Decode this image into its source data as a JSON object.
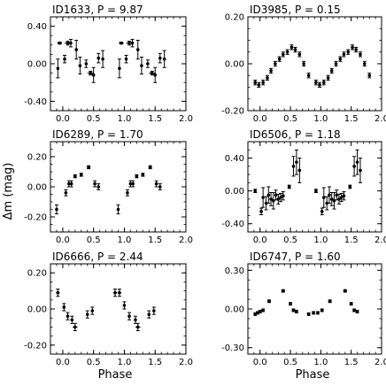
{
  "figure": {
    "ylabel": "Δm (mag)",
    "xlabel_left": "Phase",
    "xlabel_right": "Phase"
  },
  "chart_data": [
    {
      "type": "scatter",
      "title": "ID1633, P = 9.87",
      "xlim": [
        -0.2,
        2.0
      ],
      "ylim": [
        -0.5,
        0.5
      ],
      "xticks": [
        0.0,
        0.5,
        1.0,
        1.5,
        2.0
      ],
      "xticklabels": [
        "0.0",
        "0.5",
        "1.0",
        "1.5",
        "2.0"
      ],
      "yticks": [
        -0.4,
        0.0,
        0.4
      ],
      "yticklabels": [
        "-0.40",
        "0.00",
        "0.40"
      ],
      "points": [
        {
          "x": -0.08,
          "y": -0.05,
          "xerr": 0.01,
          "yerr": 0.1
        },
        {
          "x": -0.05,
          "y": 0.22,
          "xerr": 0.04,
          "yerr": 0.01
        },
        {
          "x": 0.03,
          "y": 0.05,
          "xerr": 0.02,
          "yerr": 0.04
        },
        {
          "x": 0.08,
          "y": 0.22,
          "xerr": 0.05,
          "yerr": 0.02
        },
        {
          "x": 0.13,
          "y": 0.22,
          "xerr": 0.02,
          "yerr": 0.04
        },
        {
          "x": 0.22,
          "y": 0.15,
          "xerr": 0.02,
          "yerr": 0.1
        },
        {
          "x": 0.28,
          "y": -0.02,
          "xerr": 0.02,
          "yerr": 0.09
        },
        {
          "x": 0.38,
          "y": 0.0,
          "xerr": 0.02,
          "yerr": 0.04
        },
        {
          "x": 0.45,
          "y": -0.1,
          "xerr": 0.05,
          "yerr": 0.02
        },
        {
          "x": 0.5,
          "y": -0.12,
          "xerr": 0.02,
          "yerr": 0.08
        },
        {
          "x": 0.58,
          "y": 0.06,
          "xerr": 0.02,
          "yerr": 0.05
        },
        {
          "x": 0.65,
          "y": 0.05,
          "xerr": 0.02,
          "yerr": 0.09
        },
        {
          "x": 0.92,
          "y": -0.05,
          "xerr": 0.01,
          "yerr": 0.1
        },
        {
          "x": 0.95,
          "y": 0.22,
          "xerr": 0.04,
          "yerr": 0.01
        },
        {
          "x": 1.03,
          "y": 0.05,
          "xerr": 0.02,
          "yerr": 0.04
        },
        {
          "x": 1.08,
          "y": 0.22,
          "xerr": 0.05,
          "yerr": 0.02
        },
        {
          "x": 1.13,
          "y": 0.22,
          "xerr": 0.02,
          "yerr": 0.04
        },
        {
          "x": 1.22,
          "y": 0.15,
          "xerr": 0.02,
          "yerr": 0.1
        },
        {
          "x": 1.28,
          "y": -0.02,
          "xerr": 0.02,
          "yerr": 0.09
        },
        {
          "x": 1.38,
          "y": 0.0,
          "xerr": 0.02,
          "yerr": 0.04
        },
        {
          "x": 1.45,
          "y": -0.1,
          "xerr": 0.05,
          "yerr": 0.02
        },
        {
          "x": 1.5,
          "y": -0.12,
          "xerr": 0.02,
          "yerr": 0.08
        },
        {
          "x": 1.58,
          "y": 0.06,
          "xerr": 0.02,
          "yerr": 0.05
        },
        {
          "x": 1.65,
          "y": 0.05,
          "xerr": 0.02,
          "yerr": 0.09
        }
      ]
    },
    {
      "type": "scatter",
      "title": "ID3985, P = 0.15",
      "xlim": [
        -0.2,
        2.0
      ],
      "ylim": [
        -0.2,
        0.2
      ],
      "xticks": [
        0.0,
        0.5,
        1.0,
        1.5,
        2.0
      ],
      "xticklabels": [
        "0.0",
        "0.5",
        "1.0",
        "1.5",
        "2.0"
      ],
      "yticks": [
        -0.2,
        0.0,
        0.2
      ],
      "yticklabels": [
        "-0.20",
        "0.00",
        "0.20"
      ],
      "points": [
        {
          "x": -0.08,
          "y": -0.08,
          "xerr": 0.02,
          "yerr": 0.01
        },
        {
          "x": -0.02,
          "y": -0.09,
          "xerr": 0.02,
          "yerr": 0.01
        },
        {
          "x": 0.05,
          "y": -0.08,
          "xerr": 0.02,
          "yerr": 0.01
        },
        {
          "x": 0.12,
          "y": -0.06,
          "xerr": 0.02,
          "yerr": 0.01
        },
        {
          "x": 0.18,
          "y": -0.03,
          "xerr": 0.02,
          "yerr": 0.01
        },
        {
          "x": 0.25,
          "y": 0.0,
          "xerr": 0.02,
          "yerr": 0.01
        },
        {
          "x": 0.32,
          "y": 0.02,
          "xerr": 0.02,
          "yerr": 0.01
        },
        {
          "x": 0.38,
          "y": 0.04,
          "xerr": 0.02,
          "yerr": 0.01
        },
        {
          "x": 0.45,
          "y": 0.05,
          "xerr": 0.02,
          "yerr": 0.01
        },
        {
          "x": 0.52,
          "y": 0.07,
          "xerr": 0.02,
          "yerr": 0.01
        },
        {
          "x": 0.58,
          "y": 0.06,
          "xerr": 0.02,
          "yerr": 0.01
        },
        {
          "x": 0.65,
          "y": 0.04,
          "xerr": 0.02,
          "yerr": 0.01
        },
        {
          "x": 0.72,
          "y": 0.0,
          "xerr": 0.02,
          "yerr": 0.01
        },
        {
          "x": 0.8,
          "y": -0.05,
          "xerr": 0.02,
          "yerr": 0.01
        },
        {
          "x": 0.92,
          "y": -0.08,
          "xerr": 0.02,
          "yerr": 0.01
        },
        {
          "x": 0.98,
          "y": -0.09,
          "xerr": 0.02,
          "yerr": 0.01
        },
        {
          "x": 1.05,
          "y": -0.08,
          "xerr": 0.02,
          "yerr": 0.01
        },
        {
          "x": 1.12,
          "y": -0.06,
          "xerr": 0.02,
          "yerr": 0.01
        },
        {
          "x": 1.18,
          "y": -0.03,
          "xerr": 0.02,
          "yerr": 0.01
        },
        {
          "x": 1.25,
          "y": 0.0,
          "xerr": 0.02,
          "yerr": 0.01
        },
        {
          "x": 1.32,
          "y": 0.02,
          "xerr": 0.02,
          "yerr": 0.01
        },
        {
          "x": 1.38,
          "y": 0.04,
          "xerr": 0.02,
          "yerr": 0.01
        },
        {
          "x": 1.45,
          "y": 0.05,
          "xerr": 0.02,
          "yerr": 0.01
        },
        {
          "x": 1.52,
          "y": 0.07,
          "xerr": 0.02,
          "yerr": 0.01
        },
        {
          "x": 1.58,
          "y": 0.06,
          "xerr": 0.02,
          "yerr": 0.01
        },
        {
          "x": 1.65,
          "y": 0.04,
          "xerr": 0.02,
          "yerr": 0.01
        },
        {
          "x": 1.72,
          "y": 0.0,
          "xerr": 0.02,
          "yerr": 0.01
        },
        {
          "x": 1.8,
          "y": -0.05,
          "xerr": 0.02,
          "yerr": 0.01
        }
      ]
    },
    {
      "type": "scatter",
      "title": "ID6289, P = 1.70",
      "xlim": [
        -0.2,
        2.0
      ],
      "ylim": [
        -0.3,
        0.3
      ],
      "xticks": [
        0.0,
        0.5,
        1.0,
        1.5,
        2.0
      ],
      "xticklabels": [
        "0.0",
        "0.5",
        "1.0",
        "1.5",
        "2.0"
      ],
      "yticks": [
        -0.2,
        0.0,
        0.2
      ],
      "yticklabels": [
        "-0.20",
        "0.00",
        "0.20"
      ],
      "points": [
        {
          "x": -0.1,
          "y": -0.15,
          "xerr": 0.02,
          "yerr": 0.03
        },
        {
          "x": 0.05,
          "y": -0.04,
          "xerr": 0.02,
          "yerr": 0.02
        },
        {
          "x": 0.1,
          "y": 0.02,
          "xerr": 0.02,
          "yerr": 0.02
        },
        {
          "x": 0.14,
          "y": 0.02,
          "xerr": 0.02,
          "yerr": 0.02
        },
        {
          "x": 0.2,
          "y": 0.07,
          "xerr": 0.02,
          "yerr": 0.01
        },
        {
          "x": 0.3,
          "y": 0.08,
          "xerr": 0.02,
          "yerr": 0.01
        },
        {
          "x": 0.42,
          "y": 0.13,
          "xerr": 0.03,
          "yerr": 0.01
        },
        {
          "x": 0.52,
          "y": 0.02,
          "xerr": 0.02,
          "yerr": 0.02
        },
        {
          "x": 0.58,
          "y": 0.0,
          "xerr": 0.02,
          "yerr": 0.02
        },
        {
          "x": 0.9,
          "y": -0.15,
          "xerr": 0.02,
          "yerr": 0.03
        },
        {
          "x": 1.05,
          "y": -0.04,
          "xerr": 0.02,
          "yerr": 0.02
        },
        {
          "x": 1.1,
          "y": 0.02,
          "xerr": 0.02,
          "yerr": 0.02
        },
        {
          "x": 1.14,
          "y": 0.02,
          "xerr": 0.02,
          "yerr": 0.02
        },
        {
          "x": 1.2,
          "y": 0.07,
          "xerr": 0.02,
          "yerr": 0.01
        },
        {
          "x": 1.3,
          "y": 0.08,
          "xerr": 0.02,
          "yerr": 0.01
        },
        {
          "x": 1.42,
          "y": 0.13,
          "xerr": 0.03,
          "yerr": 0.01
        },
        {
          "x": 1.52,
          "y": 0.02,
          "xerr": 0.02,
          "yerr": 0.02
        },
        {
          "x": 1.58,
          "y": 0.0,
          "xerr": 0.02,
          "yerr": 0.02
        }
      ]
    },
    {
      "type": "scatter",
      "title": "ID6506, P = 1.18",
      "xlim": [
        -0.2,
        2.0
      ],
      "ylim": [
        -0.5,
        0.6
      ],
      "xticks": [
        0.0,
        0.5,
        1.0,
        1.5,
        2.0
      ],
      "xticklabels": [
        "0.0",
        "0.5",
        "1.0",
        "1.5",
        "2.0"
      ],
      "yticks": [
        -0.4,
        0.0,
        0.4
      ],
      "yticklabels": [
        "-0.40",
        "0.00",
        "0.40"
      ],
      "points": [
        {
          "x": -0.08,
          "y": 0.0,
          "xerr": 0.02,
          "yerr": 0.02
        },
        {
          "x": 0.02,
          "y": -0.25,
          "xerr": 0.02,
          "yerr": 0.04
        },
        {
          "x": 0.05,
          "y": -0.08,
          "xerr": 0.02,
          "yerr": 0.12
        },
        {
          "x": 0.1,
          "y": -0.15,
          "xerr": 0.02,
          "yerr": 0.08
        },
        {
          "x": 0.14,
          "y": -0.05,
          "xerr": 0.02,
          "yerr": 0.1
        },
        {
          "x": 0.18,
          "y": -0.1,
          "xerr": 0.02,
          "yerr": 0.08
        },
        {
          "x": 0.22,
          "y": -0.12,
          "xerr": 0.02,
          "yerr": 0.1
        },
        {
          "x": 0.26,
          "y": -0.05,
          "xerr": 0.02,
          "yerr": 0.06
        },
        {
          "x": 0.3,
          "y": -0.1,
          "xerr": 0.02,
          "yerr": 0.06
        },
        {
          "x": 0.34,
          "y": -0.08,
          "xerr": 0.02,
          "yerr": 0.05
        },
        {
          "x": 0.38,
          "y": -0.06,
          "xerr": 0.02,
          "yerr": 0.05
        },
        {
          "x": 0.48,
          "y": 0.05,
          "xerr": 0.02,
          "yerr": 0.02
        },
        {
          "x": 0.55,
          "y": 0.3,
          "xerr": 0.02,
          "yerr": 0.12
        },
        {
          "x": 0.6,
          "y": 0.35,
          "xerr": 0.02,
          "yerr": 0.15
        },
        {
          "x": 0.65,
          "y": 0.25,
          "xerr": 0.02,
          "yerr": 0.15
        },
        {
          "x": 0.92,
          "y": 0.0,
          "xerr": 0.02,
          "yerr": 0.02
        },
        {
          "x": 1.02,
          "y": -0.25,
          "xerr": 0.02,
          "yerr": 0.04
        },
        {
          "x": 1.05,
          "y": -0.08,
          "xerr": 0.02,
          "yerr": 0.12
        },
        {
          "x": 1.1,
          "y": -0.15,
          "xerr": 0.02,
          "yerr": 0.08
        },
        {
          "x": 1.14,
          "y": -0.05,
          "xerr": 0.02,
          "yerr": 0.1
        },
        {
          "x": 1.18,
          "y": -0.1,
          "xerr": 0.02,
          "yerr": 0.08
        },
        {
          "x": 1.22,
          "y": -0.12,
          "xerr": 0.02,
          "yerr": 0.1
        },
        {
          "x": 1.26,
          "y": -0.05,
          "xerr": 0.02,
          "yerr": 0.06
        },
        {
          "x": 1.3,
          "y": -0.1,
          "xerr": 0.02,
          "yerr": 0.06
        },
        {
          "x": 1.34,
          "y": -0.08,
          "xerr": 0.02,
          "yerr": 0.05
        },
        {
          "x": 1.38,
          "y": -0.06,
          "xerr": 0.02,
          "yerr": 0.05
        },
        {
          "x": 1.48,
          "y": 0.05,
          "xerr": 0.02,
          "yerr": 0.02
        },
        {
          "x": 1.55,
          "y": 0.3,
          "xerr": 0.02,
          "yerr": 0.12
        },
        {
          "x": 1.6,
          "y": 0.35,
          "xerr": 0.02,
          "yerr": 0.15
        },
        {
          "x": 1.65,
          "y": 0.25,
          "xerr": 0.02,
          "yerr": 0.15
        }
      ]
    },
    {
      "type": "scatter",
      "title": "ID6666, P = 2.44",
      "xlim": [
        -0.2,
        2.0
      ],
      "ylim": [
        -0.25,
        0.25
      ],
      "xticks": [
        0.0,
        0.5,
        1.0,
        1.5,
        2.0
      ],
      "xticklabels": [
        "0.0",
        "0.5",
        "1.0",
        "1.5",
        "2.0"
      ],
      "yticks": [
        -0.2,
        0.0,
        0.2
      ],
      "yticklabels": [
        "-0.20",
        "0.00",
        "0.20"
      ],
      "points": [
        {
          "x": -0.08,
          "y": 0.09,
          "xerr": 0.03,
          "yerr": 0.02
        },
        {
          "x": 0.02,
          "y": 0.01,
          "xerr": 0.02,
          "yerr": 0.02
        },
        {
          "x": 0.08,
          "y": -0.04,
          "xerr": 0.02,
          "yerr": 0.02
        },
        {
          "x": 0.15,
          "y": -0.06,
          "xerr": 0.02,
          "yerr": 0.02
        },
        {
          "x": 0.2,
          "y": -0.1,
          "xerr": 0.04,
          "yerr": 0.02
        },
        {
          "x": 0.4,
          "y": -0.03,
          "xerr": 0.02,
          "yerr": 0.02
        },
        {
          "x": 0.48,
          "y": -0.01,
          "xerr": 0.02,
          "yerr": 0.02
        },
        {
          "x": 0.85,
          "y": 0.09,
          "xerr": 0.03,
          "yerr": 0.02
        },
        {
          "x": 0.92,
          "y": 0.09,
          "xerr": 0.03,
          "yerr": 0.02
        },
        {
          "x": 1.0,
          "y": 0.02,
          "xerr": 0.02,
          "yerr": 0.02
        },
        {
          "x": 1.08,
          "y": -0.04,
          "xerr": 0.02,
          "yerr": 0.02
        },
        {
          "x": 1.18,
          "y": -0.06,
          "xerr": 0.02,
          "yerr": 0.02
        },
        {
          "x": 1.22,
          "y": -0.1,
          "xerr": 0.04,
          "yerr": 0.02
        },
        {
          "x": 1.4,
          "y": -0.03,
          "xerr": 0.02,
          "yerr": 0.02
        },
        {
          "x": 1.48,
          "y": -0.01,
          "xerr": 0.02,
          "yerr": 0.02
        }
      ]
    },
    {
      "type": "scatter",
      "title": "ID6747, P = 1.60",
      "xlim": [
        -0.2,
        2.0
      ],
      "ylim": [
        -0.35,
        0.35
      ],
      "xticks": [
        0.0,
        0.5,
        1.0,
        1.5,
        2.0
      ],
      "xticklabels": [
        "0.0",
        "0.5",
        "1.0",
        "1.5",
        "2.0"
      ],
      "yticks": [
        -0.3,
        0.0,
        0.3
      ],
      "yticklabels": [
        "-0.30",
        "0.00",
        "0.30"
      ],
      "points": [
        {
          "x": -0.08,
          "y": -0.04,
          "xerr": 0.02,
          "yerr": 0.01
        },
        {
          "x": -0.04,
          "y": -0.03,
          "xerr": 0.02,
          "yerr": 0.01
        },
        {
          "x": 0.0,
          "y": -0.02,
          "xerr": 0.02,
          "yerr": 0.01
        },
        {
          "x": 0.05,
          "y": -0.01,
          "xerr": 0.02,
          "yerr": 0.01
        },
        {
          "x": 0.15,
          "y": 0.06,
          "xerr": 0.03,
          "yerr": 0.01
        },
        {
          "x": 0.38,
          "y": 0.14,
          "xerr": 0.03,
          "yerr": 0.01
        },
        {
          "x": 0.5,
          "y": 0.04,
          "xerr": 0.02,
          "yerr": 0.01
        },
        {
          "x": 0.55,
          "y": -0.01,
          "xerr": 0.02,
          "yerr": 0.01
        },
        {
          "x": 0.6,
          "y": -0.02,
          "xerr": 0.02,
          "yerr": 0.01
        },
        {
          "x": 0.8,
          "y": -0.04,
          "xerr": 0.02,
          "yerr": 0.01
        },
        {
          "x": 0.88,
          "y": -0.03,
          "xerr": 0.02,
          "yerr": 0.01
        },
        {
          "x": 0.95,
          "y": -0.03,
          "xerr": 0.02,
          "yerr": 0.01
        },
        {
          "x": 1.02,
          "y": -0.01,
          "xerr": 0.02,
          "yerr": 0.01
        },
        {
          "x": 1.15,
          "y": 0.06,
          "xerr": 0.03,
          "yerr": 0.01
        },
        {
          "x": 1.4,
          "y": 0.14,
          "xerr": 0.03,
          "yerr": 0.01
        },
        {
          "x": 1.5,
          "y": 0.04,
          "xerr": 0.02,
          "yerr": 0.01
        },
        {
          "x": 1.55,
          "y": -0.01,
          "xerr": 0.02,
          "yerr": 0.01
        },
        {
          "x": 1.6,
          "y": -0.02,
          "xerr": 0.02,
          "yerr": 0.01
        }
      ]
    }
  ]
}
